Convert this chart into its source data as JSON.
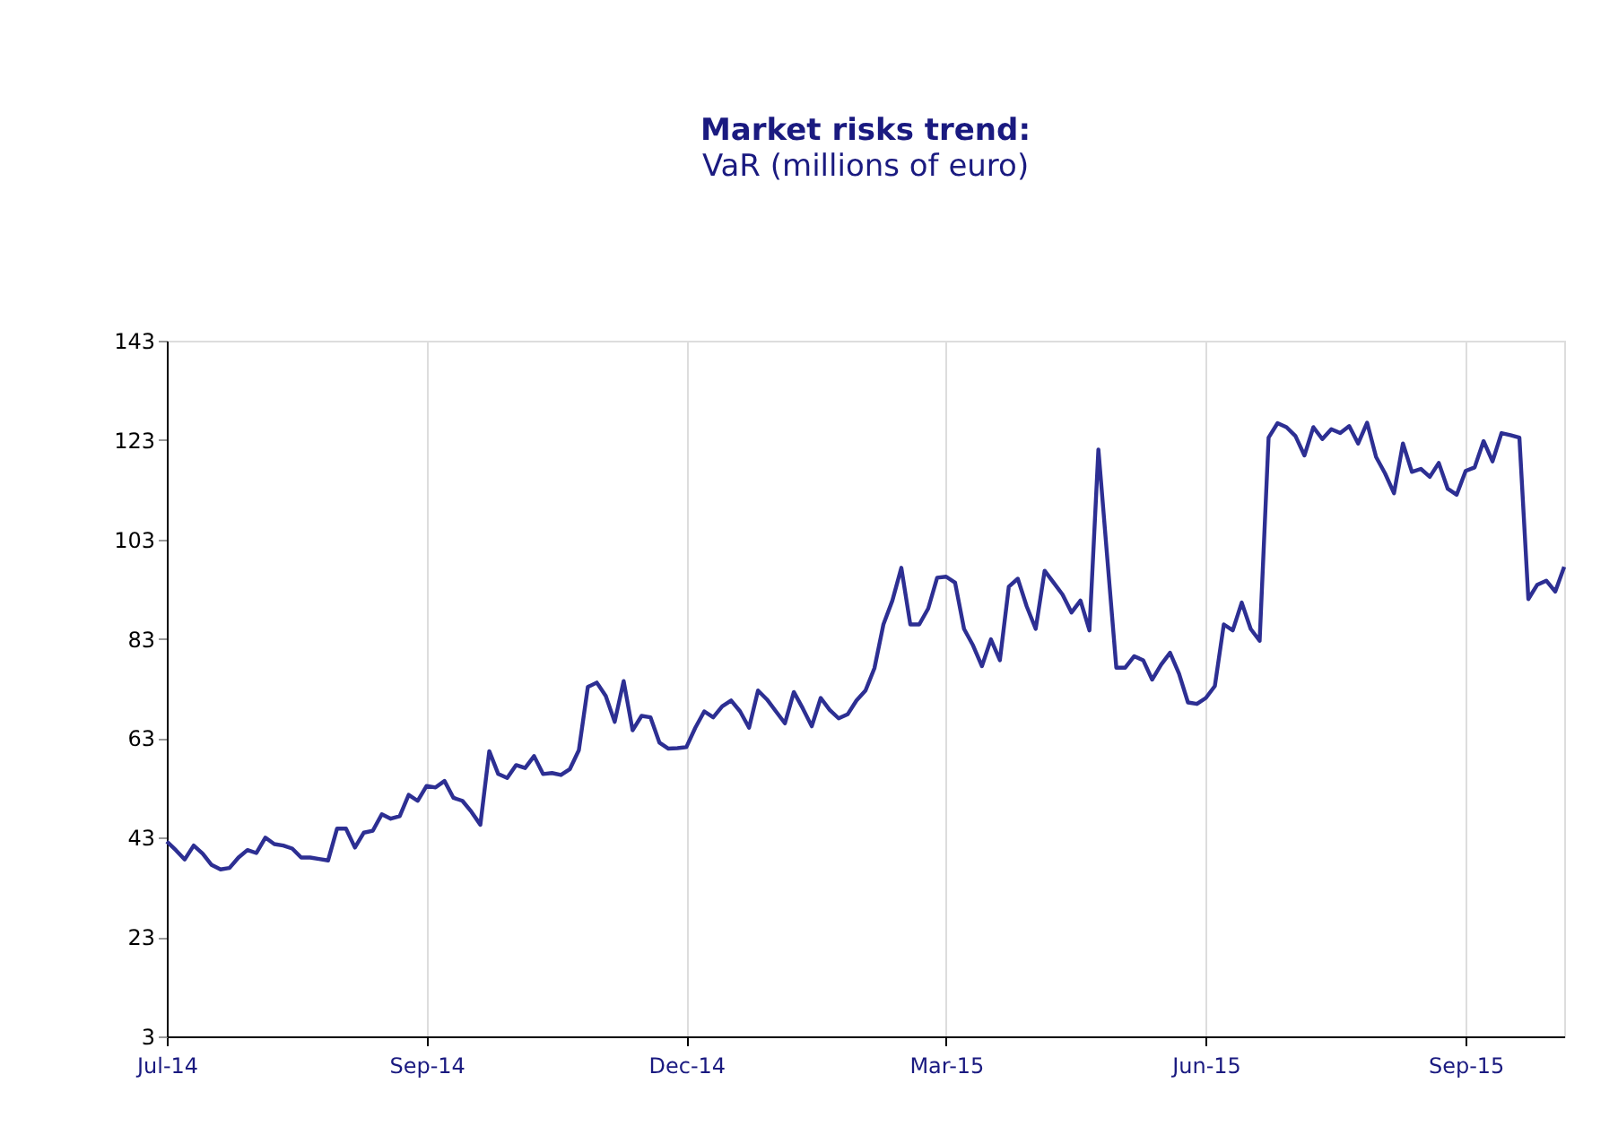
{
  "chart_data": {
    "type": "line",
    "title": "Market risks trend:",
    "subtitle": "VaR (millions of euro)",
    "categories": [
      "Jul-14",
      null,
      null,
      null,
      null,
      null,
      null,
      null,
      null,
      null,
      null,
      null,
      null,
      null,
      null,
      null,
      null,
      null,
      null,
      null,
      null,
      null,
      null,
      null,
      null,
      null,
      null,
      null,
      null,
      "Sep-14",
      null,
      null,
      null,
      null,
      null,
      null,
      null,
      null,
      null,
      null,
      null,
      null,
      null,
      null,
      null,
      null,
      null,
      null,
      null,
      null,
      null,
      null,
      null,
      null,
      null,
      null,
      null,
      null,
      "Dec-14",
      null,
      null,
      null,
      null,
      null,
      null,
      null,
      null,
      null,
      null,
      null,
      null,
      null,
      null,
      null,
      null,
      null,
      null,
      null,
      null,
      null,
      null,
      null,
      null,
      null,
      null,
      null,
      null,
      "Mar-15",
      null,
      null,
      null,
      null,
      null,
      null,
      null,
      null,
      null,
      null,
      null,
      null,
      null,
      null,
      null,
      null,
      null,
      null,
      null,
      null,
      null,
      null,
      null,
      null,
      null,
      null,
      null,
      null,
      "Jun-15",
      null,
      null,
      null,
      null,
      null,
      null,
      null,
      null,
      null,
      null,
      null,
      null,
      null,
      null,
      null,
      null,
      null,
      null,
      null,
      null,
      null,
      null,
      null,
      null,
      null,
      null,
      null,
      null,
      "Sep-15",
      null,
      null,
      null,
      null,
      null,
      null,
      null,
      null,
      null,
      null,
      null
    ],
    "ylim": [
      3,
      143
    ],
    "yticks": [
      3,
      23,
      43,
      63,
      83,
      103,
      123,
      143
    ],
    "grid": "x",
    "marker": "none",
    "line_style": "solid",
    "series": [
      {
        "color": "#2d2f93",
        "values": [
          42.2,
          40.5,
          38.6,
          41.4,
          39.8,
          37.5,
          36.6,
          36.9,
          39,
          40.5,
          39.9,
          43,
          41.7,
          41.4,
          40.8,
          39,
          39,
          38.7,
          38.4,
          44.8,
          44.8,
          41,
          44,
          44.4,
          47.7,
          46.8,
          47.3,
          51.6,
          50.4,
          53.4,
          53.1,
          54.4,
          51,
          50.4,
          48.2,
          45.6,
          60.4,
          55.8,
          55,
          57.6,
          57,
          59.4,
          55.8,
          56,
          55.6,
          56.8,
          60.6,
          73.3,
          74.2,
          71.5,
          66.3,
          74.5,
          64.6,
          67.5,
          67.2,
          62.1,
          60.9,
          61,
          61.2,
          65.1,
          68.4,
          67.2,
          69.4,
          70.6,
          68.4,
          65.1,
          72.6,
          70.8,
          68.4,
          66,
          72.3,
          69,
          65.4,
          71.1,
          68.7,
          67,
          67.8,
          70.6,
          72.6,
          77.1,
          85.9,
          90.7,
          97.3,
          85.9,
          85.9,
          89.1,
          95.3,
          95.5,
          94.3,
          85,
          81.7,
          77.5,
          82.9,
          78.7,
          93.5,
          95.1,
          89.5,
          85,
          96.7,
          94.3,
          91.9,
          88.3,
          90.7,
          84.7,
          121.1,
          99.1,
          77.2,
          77.2,
          79.5,
          78.7,
          74.8,
          77.8,
          80.2,
          76,
          70.2,
          69.9,
          71.1,
          73.5,
          85.9,
          84.7,
          90.3,
          85,
          82.6,
          123.5,
          126.4,
          125.6,
          123.8,
          119.9,
          125.6,
          123.2,
          125.2,
          124.4,
          125.8,
          122.3,
          126.5,
          119.6,
          116.3,
          112.3,
          122.3,
          116.6,
          117.2,
          115.6,
          118.4,
          113.2,
          112,
          116.8,
          117.5,
          122.8,
          118.7,
          124.4,
          124,
          123.5,
          91,
          93.9,
          94.7,
          92.5,
          97.5
        ]
      }
    ]
  }
}
